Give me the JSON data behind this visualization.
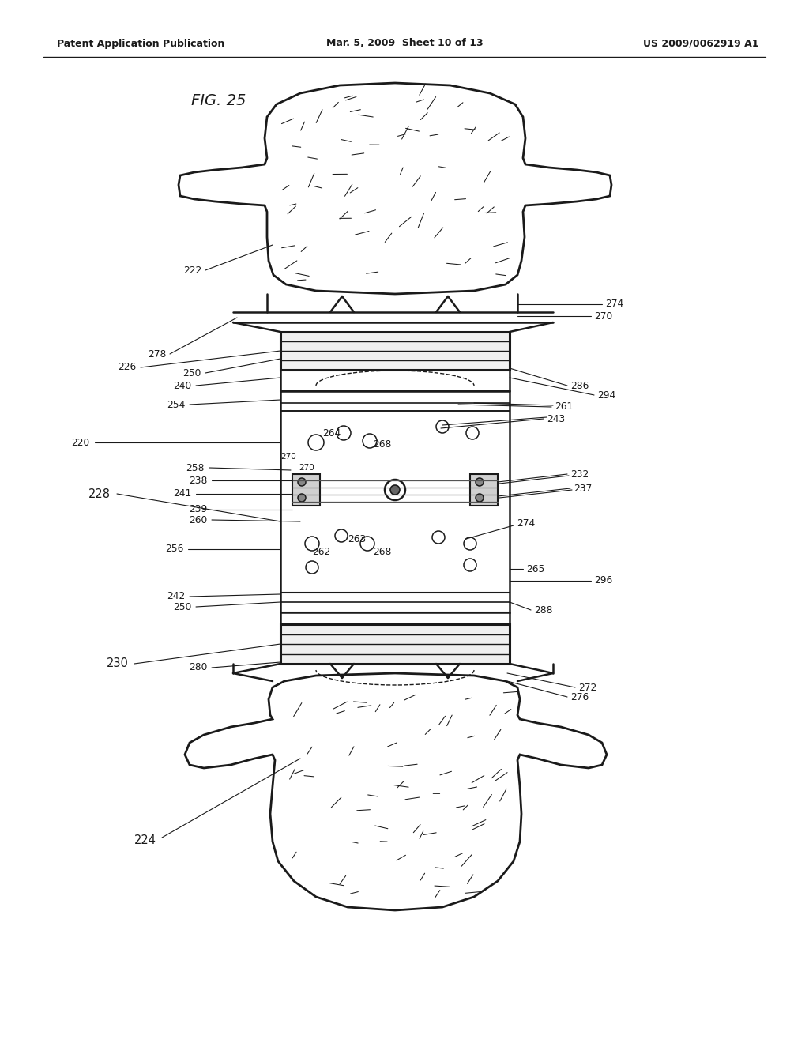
{
  "bg_color": "#ffffff",
  "lc": "#1a1a1a",
  "header_left": "Patent Application Publication",
  "header_mid": "Mar. 5, 2009  Sheet 10 of 13",
  "header_right": "US 2009/0062919 A1",
  "fig_label": "FIG. 25"
}
